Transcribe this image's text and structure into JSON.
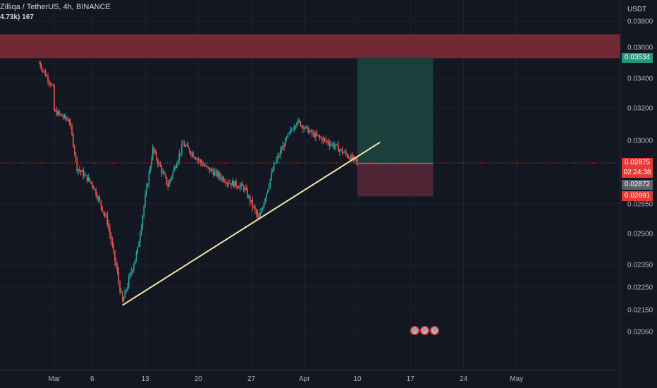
{
  "header": {
    "symbol_line": "Zilliqa / TetherUS, 4h, BINANCE",
    "indicator_line": "4.73k) 167"
  },
  "currency": "USDT",
  "price_tags": {
    "target": "0.03534",
    "current": "0.02875",
    "countdown": "02:24:38",
    "entry": "0.02872",
    "stop": "0.02691"
  },
  "colors": {
    "background": "#131722",
    "bull": "#26a69a",
    "bear": "#ef5350",
    "resistance_zone": "#7d2a37",
    "target_zone": "#1b3f3b",
    "stop_zone": "#4f2434",
    "trendline": "#f7e3a8",
    "target_tag": "#22997f",
    "current_tag": "#e53935",
    "entry_tag": "#5d606b",
    "stop_tag": "#e53935"
  },
  "chart_data": {
    "type": "candlestick",
    "title": "Zilliqa / TetherUS, 4h, BINANCE",
    "y_axis_label": "USDT",
    "x_ticks": [
      "Mar",
      "6",
      "13",
      "20",
      "27",
      "Apr",
      "10",
      "17",
      "24",
      "May"
    ],
    "y_ticks": [
      "0.03800",
      "0.03600",
      "0.03400",
      "0.03200",
      "0.03000",
      "0.02650",
      "0.02500",
      "0.02350",
      "0.02250",
      "0.02150",
      "0.02060"
    ],
    "price_key_points": [
      {
        "date": "Feb 26",
        "price": 0.035
      },
      {
        "date": "Feb 28",
        "price": 0.0332
      },
      {
        "date": "Mar 1",
        "price": 0.0318
      },
      {
        "date": "Mar 3",
        "price": 0.0312
      },
      {
        "date": "Mar 4",
        "price": 0.0285
      },
      {
        "date": "Mar 6",
        "price": 0.0276
      },
      {
        "date": "Mar 8",
        "price": 0.0256
      },
      {
        "date": "Mar 10",
        "price": 0.0218
      },
      {
        "date": "Mar 12",
        "price": 0.0242
      },
      {
        "date": "Mar 14",
        "price": 0.0295
      },
      {
        "date": "Mar 16",
        "price": 0.0275
      },
      {
        "date": "Mar 18",
        "price": 0.0298
      },
      {
        "date": "Mar 21",
        "price": 0.0285
      },
      {
        "date": "Mar 24",
        "price": 0.0277
      },
      {
        "date": "Mar 26",
        "price": 0.0274
      },
      {
        "date": "Mar 28",
        "price": 0.0257
      },
      {
        "date": "Mar 30",
        "price": 0.0286
      },
      {
        "date": "Apr 1",
        "price": 0.0304
      },
      {
        "date": "Apr 2",
        "price": 0.0312
      },
      {
        "date": "Apr 4",
        "price": 0.0304
      },
      {
        "date": "Apr 7",
        "price": 0.0297
      },
      {
        "date": "Apr 10",
        "price": 0.02875
      }
    ],
    "resistance_zone": [
      0.0353,
      0.037
    ],
    "trendline": {
      "from": {
        "date": "Mar 10",
        "price": 0.0217
      },
      "to": {
        "date": "Apr 13",
        "price": 0.0299
      }
    },
    "position": {
      "type": "long",
      "entry": 0.02872,
      "target": 0.03534,
      "stop": 0.02691,
      "from": "Apr 10",
      "to": "Apr 20"
    },
    "current_price": 0.02875
  }
}
